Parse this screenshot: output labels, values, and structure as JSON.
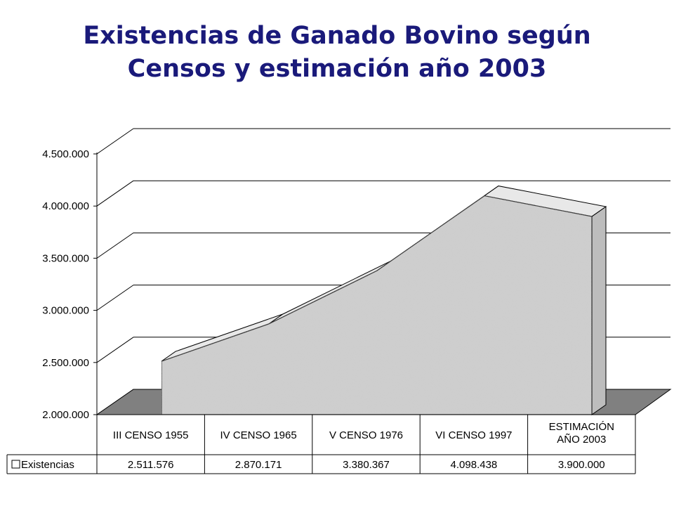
{
  "title_line1": "Existencias de Ganado Bovino según",
  "title_line2": "Censos y estimación año 2003",
  "chart_data": {
    "type": "area",
    "title": "Existencias de Ganado Bovino según Censos y estimación año 2003",
    "categories": [
      [
        "III CENSO 1955"
      ],
      [
        "IV CENSO 1965"
      ],
      [
        "V CENSO 1976"
      ],
      [
        "VI CENSO 1997"
      ],
      [
        "ESTIMACIÓN",
        "AÑO 2003"
      ]
    ],
    "series": [
      {
        "name": "Existencias",
        "values": [
          2511576,
          2870171,
          3380367,
          4098438,
          3900000
        ],
        "labels": [
          "2.511.576",
          "2.870.171",
          "3.380.367",
          "4.098.438",
          "3.900.000"
        ]
      }
    ],
    "ylim": [
      2000000,
      4500000
    ],
    "yticks": [
      2000000,
      2500000,
      3000000,
      3500000,
      4000000,
      4500000
    ],
    "ytick_labels": [
      "2.000.000",
      "2.500.000",
      "3.000.000",
      "3.500.000",
      "4.000.000",
      "4.500.000"
    ],
    "grid": true,
    "legend": "data-table",
    "colors": {
      "fill": "#d0d0d0",
      "floor": "#808080",
      "grid": "#000000",
      "title": "#1a1a7a"
    }
  }
}
